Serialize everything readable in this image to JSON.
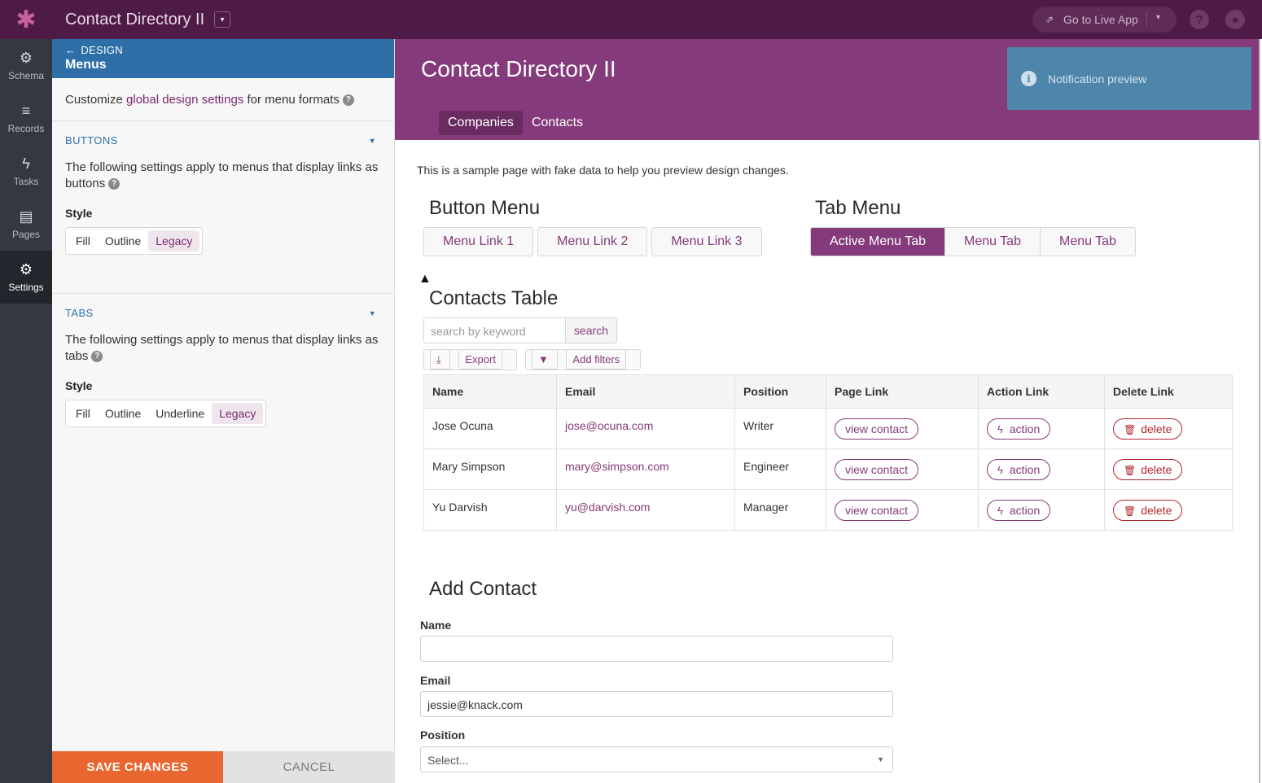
{
  "topbar": {
    "app_title": "Contact Directory II",
    "live_label": "Go to Live App",
    "help": "?",
    "accent": "#4e1a46"
  },
  "nav": {
    "items": [
      {
        "label": "Schema",
        "icon": "schema-icon"
      },
      {
        "label": "Records",
        "icon": "records-icon"
      },
      {
        "label": "Tasks",
        "icon": "tasks-icon"
      },
      {
        "label": "Pages",
        "icon": "pages-icon"
      },
      {
        "label": "Settings",
        "icon": "settings-icon"
      }
    ],
    "active": "Settings"
  },
  "panel": {
    "back_label": "DESIGN",
    "title": "Menus",
    "intro_before": "Customize ",
    "intro_link": "global design settings",
    "intro_after": " for menu formats",
    "buttons_section": {
      "heading": "BUTTONS",
      "desc": "The following settings apply to menus that display links as buttons",
      "style_label": "Style",
      "options": [
        "Fill",
        "Outline",
        "Legacy"
      ],
      "selected": "Legacy"
    },
    "tabs_section": {
      "heading": "TABS",
      "desc": "The following settings apply to menus that display links as tabs",
      "style_label": "Style",
      "options": [
        "Fill",
        "Outline",
        "Underline",
        "Legacy"
      ],
      "selected": "Legacy"
    },
    "save_label": "SAVE CHANGES",
    "cancel_label": "CANCEL"
  },
  "preview": {
    "app_title": "Contact Directory II",
    "tabs": [
      "Companies",
      "Contacts"
    ],
    "active_tab": "Companies",
    "notification": "Notification preview",
    "intro": "This is a sample page with fake data to help you preview design changes.",
    "button_menu": {
      "title": "Button Menu",
      "links": [
        "Menu Link 1",
        "Menu Link 2",
        "Menu Link 3"
      ]
    },
    "tab_menu": {
      "title": "Tab Menu",
      "tabs": [
        "Active Menu Tab",
        "Menu Tab",
        "Menu Tab"
      ]
    },
    "table": {
      "title": "Contacts Table",
      "search_placeholder": "search by keyword",
      "search_label": "search",
      "export_label": "Export",
      "filters_label": "Add filters",
      "columns": [
        "Name",
        "Email",
        "Position",
        "Page Link",
        "Action Link",
        "Delete Link"
      ],
      "rows": [
        {
          "name": "Jose Ocuna",
          "email": "jose@ocuna.com",
          "position": "Writer",
          "page": "view contact",
          "action": "action",
          "delete": "delete"
        },
        {
          "name": "Mary Simpson",
          "email": "mary@simpson.com",
          "position": "Engineer",
          "page": "view contact",
          "action": "action",
          "delete": "delete"
        },
        {
          "name": "Yu Darvish",
          "email": "yu@darvish.com",
          "position": "Manager",
          "page": "view contact",
          "action": "action",
          "delete": "delete"
        }
      ]
    },
    "form": {
      "title": "Add Contact",
      "name_label": "Name",
      "name_value": "",
      "email_label": "Email",
      "email_value": "jessie@knack.com",
      "position_label": "Position",
      "position_value": "Select..."
    },
    "accent": "#853a7b"
  }
}
